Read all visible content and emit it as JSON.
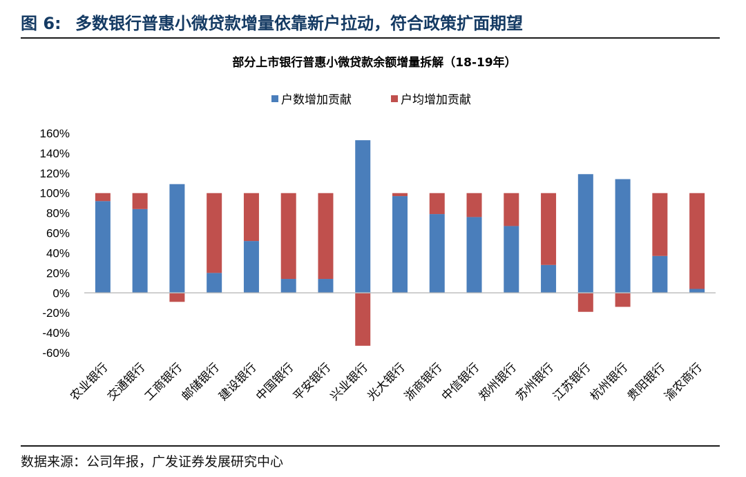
{
  "figure": {
    "label": "图 6:",
    "title": "多数银行普惠小微贷款增量依靠新户拉动，符合政策扩面期望",
    "source": "数据来源：公司年报，广发证券发展研究中心"
  },
  "colors": {
    "header": "#143a63",
    "series_blue": "#4a7ebb",
    "series_red": "#c0504d",
    "axis": "#bfbfbf"
  },
  "chart_data": {
    "type": "bar",
    "stacked": true,
    "title": "部分上市银行普惠小微贷款余额增量拆解（18-19年）",
    "categories": [
      "农业银行",
      "交通银行",
      "工商银行",
      "邮储银行",
      "建设银行",
      "中国银行",
      "平安银行",
      "兴业银行",
      "光大银行",
      "浙商银行",
      "中信银行",
      "郑州银行",
      "苏州银行",
      "江苏银行",
      "杭州银行",
      "贵阳银行",
      "渝农商行"
    ],
    "series": [
      {
        "name": "户数增加贡献",
        "color": "#4a7ebb",
        "values": [
          92,
          84,
          109,
          20,
          52,
          14,
          14,
          153,
          97,
          79,
          76,
          67,
          28,
          119,
          114,
          37,
          4
        ]
      },
      {
        "name": "户均增加贡献",
        "color": "#c0504d",
        "values": [
          8,
          16,
          -9,
          80,
          48,
          86,
          86,
          -53,
          3,
          21,
          24,
          33,
          72,
          -19,
          -14,
          63,
          96
        ]
      }
    ],
    "ylim": [
      -60,
      160
    ],
    "yticks": [
      160,
      140,
      120,
      100,
      80,
      60,
      40,
      20,
      0,
      -20,
      -40,
      -60
    ],
    "ytick_labels": [
      "160%",
      "140%",
      "120%",
      "100%",
      "80%",
      "60%",
      "40%",
      "20%",
      "0%",
      "-20%",
      "-40%",
      "-60%"
    ],
    "legend_position": "top",
    "grid": false
  }
}
